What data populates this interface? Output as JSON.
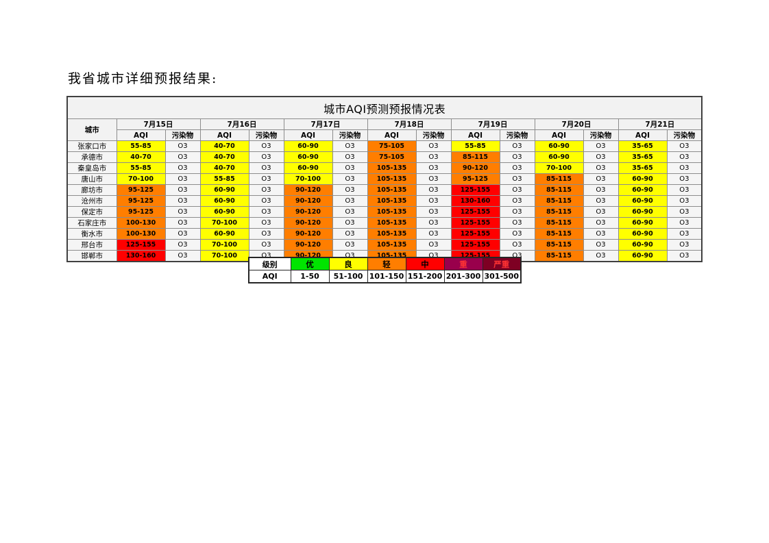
{
  "page": {
    "heading": "我省城市详细预报结果:"
  },
  "colors": {
    "yellow": "#FFFF00",
    "orange": "#FF7E00",
    "red": "#FF0000"
  },
  "table": {
    "title": "城市AQI预测预报情况表",
    "corner_header": "城市",
    "dates": [
      "7月15日",
      "7月16日",
      "7月17日",
      "7月18日",
      "7月19日",
      "7月20日",
      "7月21日"
    ],
    "subheaders": {
      "aqi": "AQI",
      "pollutant": "污染物"
    },
    "rows": [
      {
        "city": "张家口市",
        "cells": [
          {
            "aqi": "55-85",
            "level": "yellow",
            "pollutant": "O3"
          },
          {
            "aqi": "40-70",
            "level": "yellow",
            "pollutant": "O3"
          },
          {
            "aqi": "60-90",
            "level": "yellow",
            "pollutant": "O3"
          },
          {
            "aqi": "75-105",
            "level": "orange",
            "pollutant": "O3"
          },
          {
            "aqi": "55-85",
            "level": "yellow",
            "pollutant": "O3"
          },
          {
            "aqi": "60-90",
            "level": "yellow",
            "pollutant": "O3"
          },
          {
            "aqi": "35-65",
            "level": "yellow",
            "pollutant": "O3"
          }
        ]
      },
      {
        "city": "承德市",
        "cells": [
          {
            "aqi": "40-70",
            "level": "yellow",
            "pollutant": "O3"
          },
          {
            "aqi": "40-70",
            "level": "yellow",
            "pollutant": "O3"
          },
          {
            "aqi": "60-90",
            "level": "yellow",
            "pollutant": "O3"
          },
          {
            "aqi": "75-105",
            "level": "orange",
            "pollutant": "O3"
          },
          {
            "aqi": "85-115",
            "level": "orange",
            "pollutant": "O3"
          },
          {
            "aqi": "60-90",
            "level": "yellow",
            "pollutant": "O3"
          },
          {
            "aqi": "35-65",
            "level": "yellow",
            "pollutant": "O3"
          }
        ]
      },
      {
        "city": "秦皇岛市",
        "cells": [
          {
            "aqi": "55-85",
            "level": "yellow",
            "pollutant": "O3"
          },
          {
            "aqi": "40-70",
            "level": "yellow",
            "pollutant": "O3"
          },
          {
            "aqi": "60-90",
            "level": "yellow",
            "pollutant": "O3"
          },
          {
            "aqi": "105-135",
            "level": "orange",
            "pollutant": "O3"
          },
          {
            "aqi": "90-120",
            "level": "orange",
            "pollutant": "O3"
          },
          {
            "aqi": "70-100",
            "level": "yellow",
            "pollutant": "O3"
          },
          {
            "aqi": "35-65",
            "level": "yellow",
            "pollutant": "O3"
          }
        ]
      },
      {
        "city": "唐山市",
        "cells": [
          {
            "aqi": "70-100",
            "level": "yellow",
            "pollutant": "O3"
          },
          {
            "aqi": "55-85",
            "level": "yellow",
            "pollutant": "O3"
          },
          {
            "aqi": "70-100",
            "level": "yellow",
            "pollutant": "O3"
          },
          {
            "aqi": "105-135",
            "level": "orange",
            "pollutant": "O3"
          },
          {
            "aqi": "95-125",
            "level": "orange",
            "pollutant": "O3"
          },
          {
            "aqi": "85-115",
            "level": "orange",
            "pollutant": "O3"
          },
          {
            "aqi": "60-90",
            "level": "yellow",
            "pollutant": "O3"
          }
        ]
      },
      {
        "city": "廊坊市",
        "cells": [
          {
            "aqi": "95-125",
            "level": "orange",
            "pollutant": "O3"
          },
          {
            "aqi": "60-90",
            "level": "yellow",
            "pollutant": "O3"
          },
          {
            "aqi": "90-120",
            "level": "orange",
            "pollutant": "O3"
          },
          {
            "aqi": "105-135",
            "level": "orange",
            "pollutant": "O3"
          },
          {
            "aqi": "125-155",
            "level": "red",
            "pollutant": "O3"
          },
          {
            "aqi": "85-115",
            "level": "orange",
            "pollutant": "O3"
          },
          {
            "aqi": "60-90",
            "level": "yellow",
            "pollutant": "O3"
          }
        ]
      },
      {
        "city": "沧州市",
        "cells": [
          {
            "aqi": "95-125",
            "level": "orange",
            "pollutant": "O3"
          },
          {
            "aqi": "60-90",
            "level": "yellow",
            "pollutant": "O3"
          },
          {
            "aqi": "90-120",
            "level": "orange",
            "pollutant": "O3"
          },
          {
            "aqi": "105-135",
            "level": "orange",
            "pollutant": "O3"
          },
          {
            "aqi": "130-160",
            "level": "red",
            "pollutant": "O3"
          },
          {
            "aqi": "85-115",
            "level": "orange",
            "pollutant": "O3"
          },
          {
            "aqi": "60-90",
            "level": "yellow",
            "pollutant": "O3"
          }
        ]
      },
      {
        "city": "保定市",
        "cells": [
          {
            "aqi": "95-125",
            "level": "orange",
            "pollutant": "O3"
          },
          {
            "aqi": "60-90",
            "level": "yellow",
            "pollutant": "O3"
          },
          {
            "aqi": "90-120",
            "level": "orange",
            "pollutant": "O3"
          },
          {
            "aqi": "105-135",
            "level": "orange",
            "pollutant": "O3"
          },
          {
            "aqi": "125-155",
            "level": "red",
            "pollutant": "O3"
          },
          {
            "aqi": "85-115",
            "level": "orange",
            "pollutant": "O3"
          },
          {
            "aqi": "60-90",
            "level": "yellow",
            "pollutant": "O3"
          }
        ]
      },
      {
        "city": "石家庄市",
        "cells": [
          {
            "aqi": "100-130",
            "level": "orange",
            "pollutant": "O3"
          },
          {
            "aqi": "70-100",
            "level": "yellow",
            "pollutant": "O3"
          },
          {
            "aqi": "90-120",
            "level": "orange",
            "pollutant": "O3"
          },
          {
            "aqi": "105-135",
            "level": "orange",
            "pollutant": "O3"
          },
          {
            "aqi": "125-155",
            "level": "red",
            "pollutant": "O3"
          },
          {
            "aqi": "85-115",
            "level": "orange",
            "pollutant": "O3"
          },
          {
            "aqi": "60-90",
            "level": "yellow",
            "pollutant": "O3"
          }
        ]
      },
      {
        "city": "衡水市",
        "cells": [
          {
            "aqi": "100-130",
            "level": "orange",
            "pollutant": "O3"
          },
          {
            "aqi": "60-90",
            "level": "yellow",
            "pollutant": "O3"
          },
          {
            "aqi": "90-120",
            "level": "orange",
            "pollutant": "O3"
          },
          {
            "aqi": "105-135",
            "level": "orange",
            "pollutant": "O3"
          },
          {
            "aqi": "125-155",
            "level": "red",
            "pollutant": "O3"
          },
          {
            "aqi": "85-115",
            "level": "orange",
            "pollutant": "O3"
          },
          {
            "aqi": "60-90",
            "level": "yellow",
            "pollutant": "O3"
          }
        ]
      },
      {
        "city": "邢台市",
        "cells": [
          {
            "aqi": "125-155",
            "level": "red",
            "pollutant": "O3"
          },
          {
            "aqi": "70-100",
            "level": "yellow",
            "pollutant": "O3"
          },
          {
            "aqi": "90-120",
            "level": "orange",
            "pollutant": "O3"
          },
          {
            "aqi": "105-135",
            "level": "orange",
            "pollutant": "O3"
          },
          {
            "aqi": "125-155",
            "level": "red",
            "pollutant": "O3"
          },
          {
            "aqi": "85-115",
            "level": "orange",
            "pollutant": "O3"
          },
          {
            "aqi": "60-90",
            "level": "yellow",
            "pollutant": "O3"
          }
        ]
      },
      {
        "city": "邯郸市",
        "cells": [
          {
            "aqi": "130-160",
            "level": "red",
            "pollutant": "O3"
          },
          {
            "aqi": "70-100",
            "level": "yellow",
            "pollutant": "O3"
          },
          {
            "aqi": "90-120",
            "level": "orange",
            "pollutant": "O3"
          },
          {
            "aqi": "105-135",
            "level": "orange",
            "pollutant": "O3"
          },
          {
            "aqi": "125-155",
            "level": "red",
            "pollutant": "O3"
          },
          {
            "aqi": "85-115",
            "level": "orange",
            "pollutant": "O3"
          },
          {
            "aqi": "60-90",
            "level": "yellow",
            "pollutant": "O3"
          }
        ]
      }
    ]
  },
  "legend": {
    "level_label": "级别",
    "aqi_label": "AQI",
    "items": [
      {
        "label": "优",
        "range": "1-50",
        "bg": "#00E400",
        "fg": "#000000"
      },
      {
        "label": "良",
        "range": "51-100",
        "bg": "#FFFF00",
        "fg": "#000000"
      },
      {
        "label": "轻",
        "range": "101-150",
        "bg": "#FF7E00",
        "fg": "#000000"
      },
      {
        "label": "中",
        "range": "151-200",
        "bg": "#FF0000",
        "fg": "#000000"
      },
      {
        "label": "重",
        "range": "201-300",
        "bg": "#99004C",
        "fg": "#FF3333"
      },
      {
        "label": "严重",
        "range": "301-500",
        "bg": "#7E0023",
        "fg": "#FF3333"
      }
    ]
  }
}
